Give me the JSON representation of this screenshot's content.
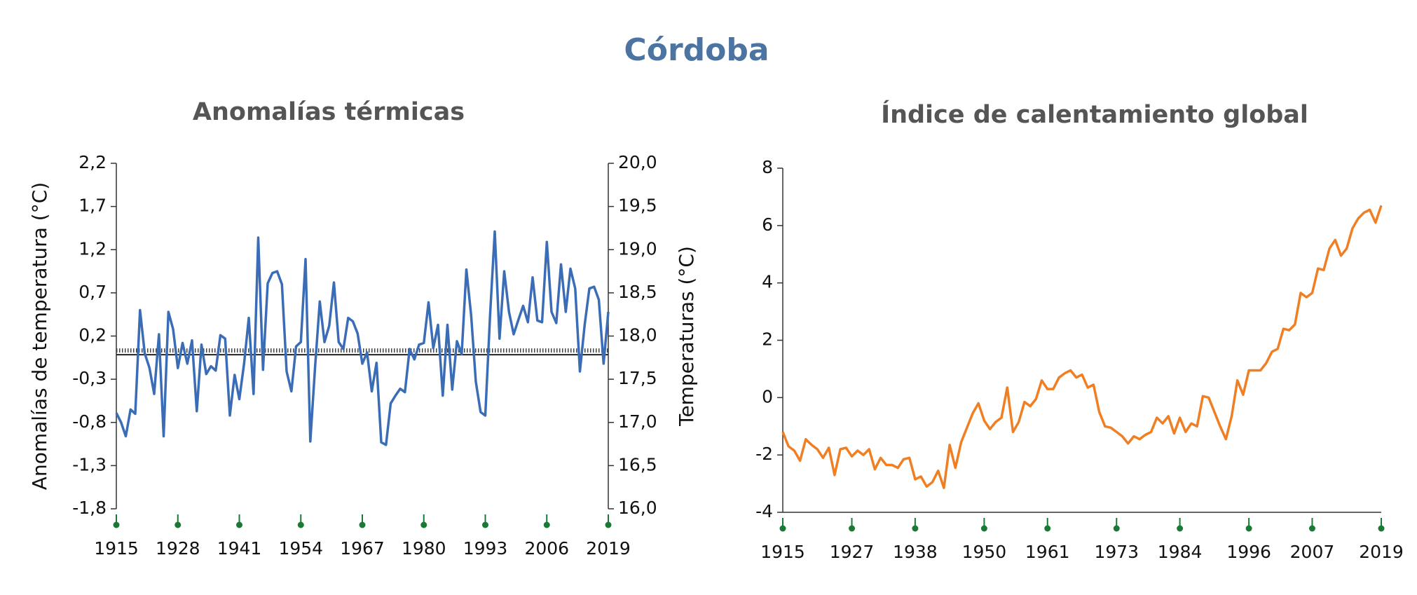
{
  "title": "Córdoba",
  "chart_data": [
    {
      "type": "line",
      "title": "Anomalías térmicas",
      "ylabel": "Anomalías de temperatura (°C)",
      "y2label": "Temperaturas (°C)",
      "x": [
        1915,
        1916,
        1917,
        1918,
        1919,
        1920,
        1921,
        1922,
        1923,
        1924,
        1925,
        1926,
        1927,
        1928,
        1929,
        1930,
        1931,
        1932,
        1933,
        1934,
        1935,
        1936,
        1937,
        1938,
        1939,
        1940,
        1941,
        1942,
        1943,
        1944,
        1945,
        1946,
        1947,
        1948,
        1949,
        1950,
        1951,
        1952,
        1953,
        1954,
        1955,
        1956,
        1957,
        1958,
        1959,
        1960,
        1961,
        1962,
        1963,
        1964,
        1965,
        1966,
        1967,
        1968,
        1969,
        1970,
        1971,
        1972,
        1973,
        1974,
        1975,
        1976,
        1977,
        1978,
        1979,
        1980,
        1981,
        1982,
        1983,
        1984,
        1985,
        1986,
        1987,
        1988,
        1989,
        1990,
        1991,
        1992,
        1993,
        1994,
        1995,
        1996,
        1997,
        1998,
        1999,
        2000,
        2001,
        2002,
        2003,
        2004,
        2005,
        2006,
        2007,
        2008,
        2009,
        2010,
        2011,
        2012,
        2013,
        2014,
        2015,
        2016,
        2017,
        2018,
        2019
      ],
      "series": [
        {
          "color": "#3a6db5",
          "values": [
            -0.69,
            -0.8,
            -0.96,
            -0.65,
            -0.7,
            0.5,
            0,
            -0.17,
            -0.47,
            0.22,
            -0.96,
            0.48,
            0.28,
            -0.17,
            0.12,
            -0.12,
            0.15,
            -0.67,
            0.1,
            -0.24,
            -0.15,
            -0.2,
            0.21,
            0.17,
            -0.72,
            -0.25,
            -0.53,
            -0.12,
            0.41,
            -0.47,
            1.34,
            -0.19,
            0.81,
            0.93,
            0.95,
            0.8,
            -0.21,
            -0.44,
            0.08,
            0.13,
            1.09,
            -1.02,
            -0.17,
            0.6,
            0.13,
            0.32,
            0.82,
            0.13,
            0.05,
            0.41,
            0.37,
            0.23,
            -0.12,
            0.01,
            -0.44,
            -0.11,
            -1.03,
            -1.06,
            -0.58,
            -0.49,
            -0.41,
            -0.45,
            0.05,
            -0.07,
            0.1,
            0.12,
            0.59,
            0.06,
            0.33,
            -0.49,
            0.33,
            -0.42,
            0.14,
            -0.01,
            0.97,
            0.44,
            -0.33,
            -0.68,
            -0.72,
            0.44,
            1.41,
            0.17,
            0.95,
            0.48,
            0.22,
            0.39,
            0.55,
            0.36,
            0.88,
            0.38,
            0.36,
            1.29,
            0.48,
            0.35,
            1.03,
            0.48,
            0.98,
            0.75,
            -0.21,
            0.33,
            0.75,
            0.77,
            0.62,
            -0.12,
            0.48
          ]
        }
      ],
      "reference_line": 0,
      "xlim": [
        1915,
        2019
      ],
      "xticks": [
        1915,
        1928,
        1941,
        1954,
        1967,
        1980,
        1993,
        2006,
        2019
      ],
      "ylim": [
        -1.8,
        2.2
      ],
      "yticks": [
        {
          "value": -1.8,
          "label": "-1,8"
        },
        {
          "value": -1.3,
          "label": "-1,3"
        },
        {
          "value": -0.8,
          "label": "-0,8"
        },
        {
          "value": -0.3,
          "label": "-0,3"
        },
        {
          "value": 0.2,
          "label": "0,2"
        },
        {
          "value": 0.7,
          "label": "0,7"
        },
        {
          "value": 1.2,
          "label": "1,2"
        },
        {
          "value": 1.7,
          "label": "1,7"
        },
        {
          "value": 2.2,
          "label": "2,2"
        }
      ],
      "y2lim": [
        16,
        20
      ],
      "y2ticks": [
        {
          "value": 16,
          "label": "16,0"
        },
        {
          "value": 16.5,
          "label": "16,5"
        },
        {
          "value": 17,
          "label": "17,0"
        },
        {
          "value": 17.5,
          "label": "17,5"
        },
        {
          "value": 18,
          "label": "18,0"
        },
        {
          "value": 18.5,
          "label": "18,5"
        },
        {
          "value": 19,
          "label": "19,0"
        },
        {
          "value": 19.5,
          "label": "19,5"
        },
        {
          "value": 20,
          "label": "20,0"
        }
      ]
    },
    {
      "type": "line",
      "title": "Índice de calentamiento global",
      "x": [
        1915,
        1916,
        1917,
        1918,
        1919,
        1920,
        1921,
        1922,
        1923,
        1924,
        1925,
        1926,
        1927,
        1928,
        1929,
        1930,
        1931,
        1932,
        1933,
        1934,
        1935,
        1936,
        1937,
        1938,
        1939,
        1940,
        1941,
        1942,
        1943,
        1944,
        1945,
        1946,
        1947,
        1948,
        1949,
        1950,
        1951,
        1952,
        1953,
        1954,
        1955,
        1956,
        1957,
        1958,
        1959,
        1960,
        1961,
        1962,
        1963,
        1964,
        1965,
        1966,
        1967,
        1968,
        1969,
        1970,
        1971,
        1972,
        1973,
        1974,
        1975,
        1976,
        1977,
        1978,
        1979,
        1980,
        1981,
        1982,
        1983,
        1984,
        1985,
        1986,
        1987,
        1988,
        1989,
        1990,
        1991,
        1992,
        1993,
        1994,
        1995,
        1996,
        1997,
        1998,
        1999,
        2000,
        2001,
        2002,
        2003,
        2004,
        2005,
        2006,
        2007,
        2008,
        2009,
        2010,
        2011,
        2012,
        2013,
        2014,
        2015,
        2016,
        2017,
        2018,
        2019
      ],
      "series": [
        {
          "color": "#f07f24",
          "values": [
            -1.2,
            -1.7,
            -1.85,
            -2.2,
            -1.45,
            -1.65,
            -1.8,
            -2.1,
            -1.75,
            -2.7,
            -1.8,
            -1.75,
            -2.05,
            -1.85,
            -2.0,
            -1.8,
            -2.5,
            -2.1,
            -2.35,
            -2.35,
            -2.45,
            -2.15,
            -2.1,
            -2.85,
            -2.75,
            -3.1,
            -2.95,
            -2.55,
            -3.15,
            -1.65,
            -2.45,
            -1.55,
            -1.05,
            -0.55,
            -0.2,
            -0.8,
            -1.1,
            -0.85,
            -0.7,
            0.35,
            -1.2,
            -0.85,
            -0.15,
            -0.3,
            -0.05,
            0.6,
            0.3,
            0.3,
            0.7,
            0.85,
            0.95,
            0.7,
            0.8,
            0.35,
            0.45,
            -0.5,
            -1.0,
            -1.05,
            -1.2,
            -1.35,
            -1.6,
            -1.35,
            -1.45,
            -1.3,
            -1.2,
            -0.7,
            -0.9,
            -0.65,
            -1.25,
            -0.7,
            -1.2,
            -0.9,
            -1.0,
            0.05,
            0.0,
            -0.5,
            -1.0,
            -1.45,
            -0.65,
            0.6,
            0.1,
            0.95,
            0.95,
            0.95,
            1.2,
            1.6,
            1.7,
            2.4,
            2.35,
            2.55,
            3.65,
            3.5,
            3.65,
            4.5,
            4.45,
            5.2,
            5.5,
            4.95,
            5.2,
            5.9,
            6.25,
            6.45,
            6.55,
            6.1,
            6.7
          ]
        }
      ],
      "xlim": [
        1915,
        2019
      ],
      "xticks": [
        1915,
        1927,
        1938,
        1950,
        1961,
        1973,
        1984,
        1996,
        2007,
        2019
      ],
      "ylim": [
        -4,
        8
      ],
      "yticks": [
        -4,
        -2,
        0,
        2,
        4,
        6,
        8
      ]
    }
  ]
}
